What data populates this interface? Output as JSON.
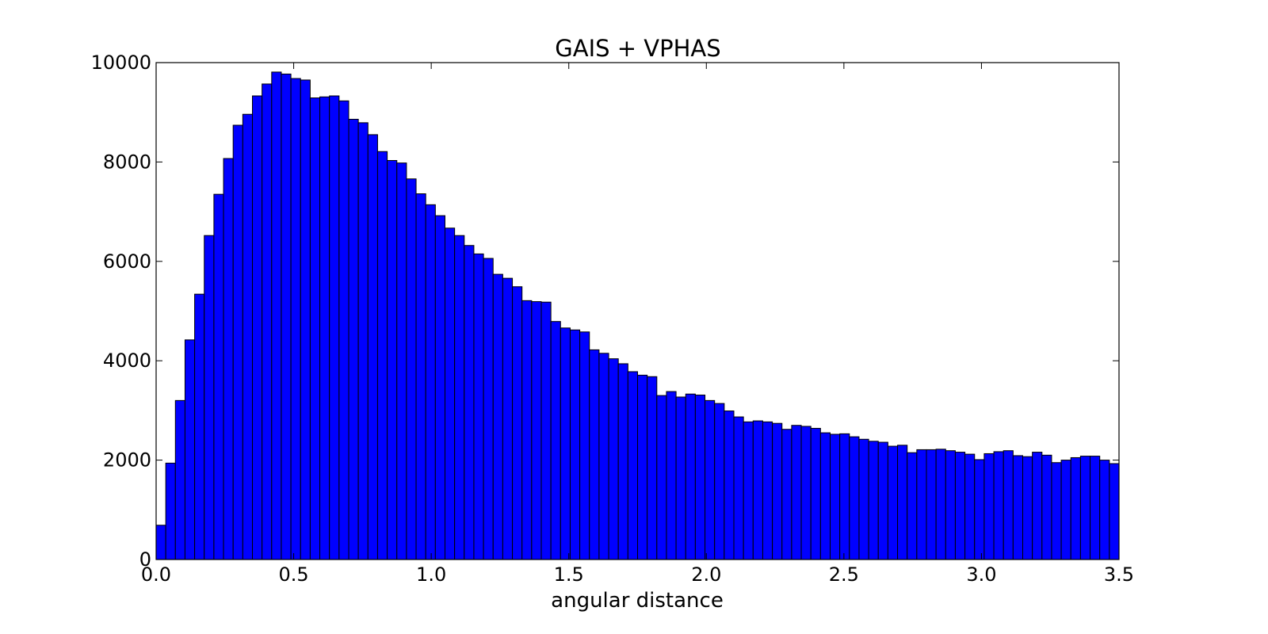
{
  "chart_data": {
    "type": "bar",
    "title": "GAIS + VPHAS",
    "xlabel": "angular distance",
    "ylabel": "",
    "xlim": [
      0.0,
      3.5
    ],
    "ylim": [
      0,
      10000
    ],
    "grid": false,
    "bar_color": "#0000ff",
    "edge_color": "#000000",
    "x_ticks": [
      "0.0",
      "0.5",
      "1.0",
      "1.5",
      "2.0",
      "2.5",
      "3.0",
      "3.5"
    ],
    "y_ticks": [
      "0",
      "2000",
      "4000",
      "6000",
      "8000",
      "10000"
    ],
    "bin_width": 0.035,
    "bin_starts": [
      0.0,
      0.035,
      0.07,
      0.105,
      0.14,
      0.175,
      0.21,
      0.245,
      0.28,
      0.315,
      0.35,
      0.385,
      0.42,
      0.455,
      0.49,
      0.525,
      0.56,
      0.595,
      0.63,
      0.665,
      0.7,
      0.735,
      0.77,
      0.805,
      0.84,
      0.875,
      0.91,
      0.945,
      0.98,
      1.015,
      1.05,
      1.085,
      1.12,
      1.155,
      1.19,
      1.225,
      1.26,
      1.295,
      1.33,
      1.365,
      1.4,
      1.435,
      1.47,
      1.505,
      1.54,
      1.575,
      1.61,
      1.645,
      1.68,
      1.715,
      1.75,
      1.785,
      1.82,
      1.855,
      1.89,
      1.925,
      1.96,
      1.995,
      2.03,
      2.065,
      2.1,
      2.135,
      2.17,
      2.205,
      2.24,
      2.275,
      2.31,
      2.345,
      2.38,
      2.415,
      2.45,
      2.485,
      2.52,
      2.555,
      2.59,
      2.625,
      2.66,
      2.695,
      2.73,
      2.765,
      2.8,
      2.835,
      2.87,
      2.905,
      2.94,
      2.975,
      3.01,
      3.045,
      3.08,
      3.115,
      3.15,
      3.185,
      3.22,
      3.255,
      3.29,
      3.325,
      3.36,
      3.395,
      3.43,
      3.465
    ],
    "values": [
      690,
      1940,
      3200,
      4420,
      5340,
      6520,
      7350,
      8070,
      8740,
      8960,
      9330,
      9570,
      9810,
      9770,
      9680,
      9650,
      9290,
      9310,
      9330,
      9230,
      8860,
      8790,
      8550,
      8210,
      8030,
      7980,
      7660,
      7360,
      7140,
      6920,
      6670,
      6520,
      6320,
      6150,
      6060,
      5740,
      5660,
      5490,
      5210,
      5190,
      5180,
      4790,
      4660,
      4620,
      4580,
      4220,
      4150,
      4040,
      3940,
      3780,
      3710,
      3680,
      3300,
      3380,
      3270,
      3330,
      3310,
      3200,
      3140,
      2990,
      2870,
      2770,
      2790,
      2770,
      2740,
      2620,
      2700,
      2680,
      2640,
      2550,
      2520,
      2530,
      2470,
      2420,
      2380,
      2360,
      2280,
      2300,
      2150,
      2210,
      2210,
      2220,
      2190,
      2160,
      2120,
      2010,
      2130,
      2170,
      2190,
      2090,
      2070,
      2160,
      2100,
      1950,
      2000,
      2050,
      2080,
      2080,
      2000,
      1930
    ]
  }
}
